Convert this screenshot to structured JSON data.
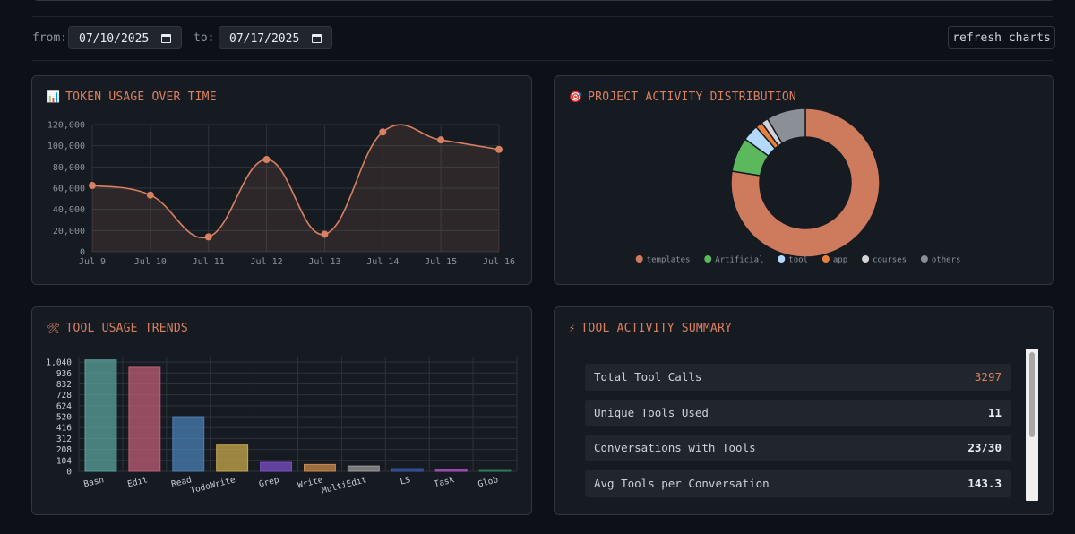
{
  "filters": {
    "from_label": "from:",
    "from_value": "07/10/2025",
    "to_label": "to:",
    "to_value": "07/17/2025",
    "refresh_label": "refresh charts"
  },
  "token_panel": {
    "icon": "bar-chart-icon",
    "title": "TOKEN USAGE OVER TIME"
  },
  "project_panel": {
    "icon": "target-icon",
    "title": "PROJECT ACTIVITY DISTRIBUTION"
  },
  "tool_panel": {
    "icon": "hammer-wrench-icon",
    "title": "TOOL USAGE TRENDS"
  },
  "summary_panel": {
    "icon": "lightning-icon",
    "title": "TOOL ACTIVITY SUMMARY",
    "stats": [
      {
        "label": "Total Tool Calls",
        "value": "3297"
      },
      {
        "label": "Unique Tools Used",
        "value": "11"
      },
      {
        "label": "Conversations with Tools",
        "value": "23/30"
      },
      {
        "label": "Avg Tools per Conversation",
        "value": "143.3"
      }
    ]
  },
  "chart_data": [
    {
      "type": "line",
      "title": "TOKEN USAGE OVER TIME",
      "categories": [
        "Jul 9",
        "Jul 10",
        "Jul 11",
        "Jul 12",
        "Jul 13",
        "Jul 14",
        "Jul 15",
        "Jul 16"
      ],
      "values": [
        62500,
        53500,
        14000,
        87000,
        16500,
        113000,
        105500,
        96500
      ],
      "y_ticks": [
        "0",
        "20,000",
        "40,000",
        "60,000",
        "80,000",
        "100,000",
        "120,000"
      ],
      "ylim": [
        0,
        120000
      ],
      "grid": true,
      "color": "#d98060"
    },
    {
      "type": "pie",
      "title": "PROJECT ACTIVITY DISTRIBUTION",
      "labels": [
        "templates",
        "Artificial",
        "tool",
        "app",
        "courses",
        "others"
      ],
      "values": [
        77.5,
        7.5,
        3.5,
        1.5,
        1.5,
        8.5
      ],
      "colors": [
        "#cd7b5c",
        "#5bb85d",
        "#b3d9ff",
        "#e8803a",
        "#d4d4d8",
        "#8b9097"
      ],
      "legend": "bottom"
    },
    {
      "type": "bar",
      "title": "TOOL USAGE TRENDS",
      "categories": [
        "Bash",
        "Edit",
        "Read",
        "TodoWrite",
        "Grep",
        "Write",
        "MultiEdit",
        "LS",
        "Task",
        "Glob"
      ],
      "values": [
        1060,
        990,
        520,
        250,
        85,
        65,
        50,
        25,
        18,
        8
      ],
      "y_ticks": [
        "0",
        "104",
        "208",
        "312",
        "416",
        "520",
        "624",
        "728",
        "832",
        "936",
        "1,040"
      ],
      "ylim": [
        0,
        1092
      ],
      "grid": true,
      "colors": [
        "#5ba39c",
        "#c05d76",
        "#4a80b5",
        "#c9a84c",
        "#7a4fc4",
        "#c98a4c",
        "#9a9a9a",
        "#3a5aa8",
        "#b050c4",
        "#2f7a5a"
      ]
    }
  ]
}
